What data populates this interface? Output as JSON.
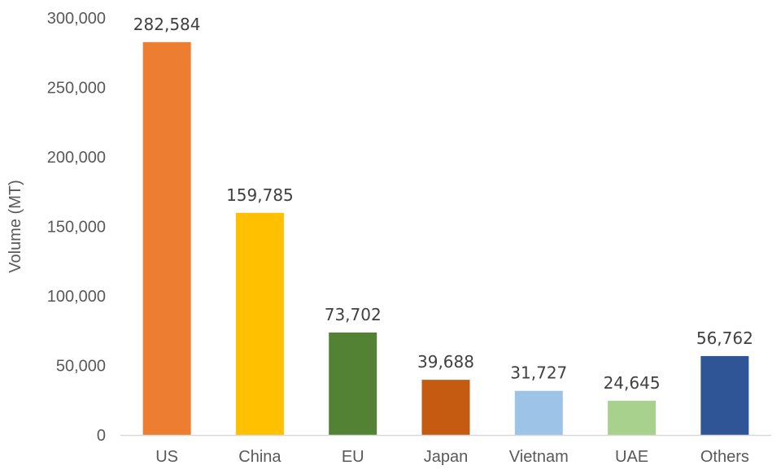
{
  "chart_data": {
    "type": "bar",
    "title": "",
    "xlabel": "",
    "ylabel": "Volume (MT)",
    "ylim": [
      0,
      300000
    ],
    "yticks": [
      0,
      50000,
      100000,
      150000,
      200000,
      250000,
      300000
    ],
    "ytick_labels": [
      "0",
      "50,000",
      "100,000",
      "150,000",
      "200,000",
      "250,000",
      "300,000"
    ],
    "grid": false,
    "legend": "none",
    "categories": [
      "US",
      "China",
      "EU",
      "Japan",
      "Vietnam",
      "UAE",
      "Others"
    ],
    "values": [
      282584,
      159785,
      73702,
      39688,
      31727,
      24645,
      56762
    ],
    "data_labels": [
      "282,584",
      "159,785",
      "73,702",
      "39,688",
      "31,727",
      "24,645",
      "56,762"
    ],
    "colors": [
      "#ED7D31",
      "#FFC000",
      "#548235",
      "#C55A11",
      "#9DC3E6",
      "#A9D18E",
      "#2F5597"
    ]
  }
}
